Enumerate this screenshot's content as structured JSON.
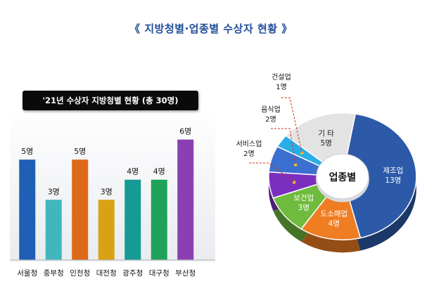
{
  "page_title": "《 지방청별·업종별 수상자 현황 》",
  "chart_data": [
    {
      "type": "bar",
      "title": "'21년 수상자 지방청별 현황 (총 30명)",
      "categories": [
        "서울청",
        "중부청",
        "인천청",
        "대전청",
        "광주청",
        "대구청",
        "부산청"
      ],
      "values": [
        5,
        3,
        5,
        3,
        4,
        4,
        6
      ],
      "value_labels": [
        "5명",
        "3명",
        "5명",
        "3명",
        "4명",
        "4명",
        "6명"
      ],
      "colors": [
        "#1f5fb4",
        "#3fb7bd",
        "#dc6a18",
        "#d9a216",
        "#149b93",
        "#1fa35a",
        "#8b3fb3"
      ],
      "ylim": [
        0,
        7
      ],
      "grid": false,
      "legend": "none"
    },
    {
      "type": "pie",
      "center_label": "업종별",
      "slices": [
        {
          "label": "제조업",
          "value": 13,
          "value_label": "13명",
          "color": "#2c5aa8"
        },
        {
          "label": "도소매업",
          "value": 4,
          "value_label": "4명",
          "color": "#ef7d22"
        },
        {
          "label": "보건업",
          "value": 3,
          "value_label": "3명",
          "color": "#6fbb3d"
        },
        {
          "label": "서비스업",
          "value": 2,
          "value_label": "2명",
          "color": "#7b2fbf"
        },
        {
          "label": "음식업",
          "value": 2,
          "value_label": "2명",
          "color": "#3b6fd0"
        },
        {
          "label": "건설업",
          "value": 1,
          "value_label": "1명",
          "color": "#2aaee6"
        },
        {
          "label": "기 타",
          "value": 5,
          "value_label": "5명",
          "color": "#e3e3e3"
        }
      ],
      "callout_color": "#d9301e"
    }
  ]
}
